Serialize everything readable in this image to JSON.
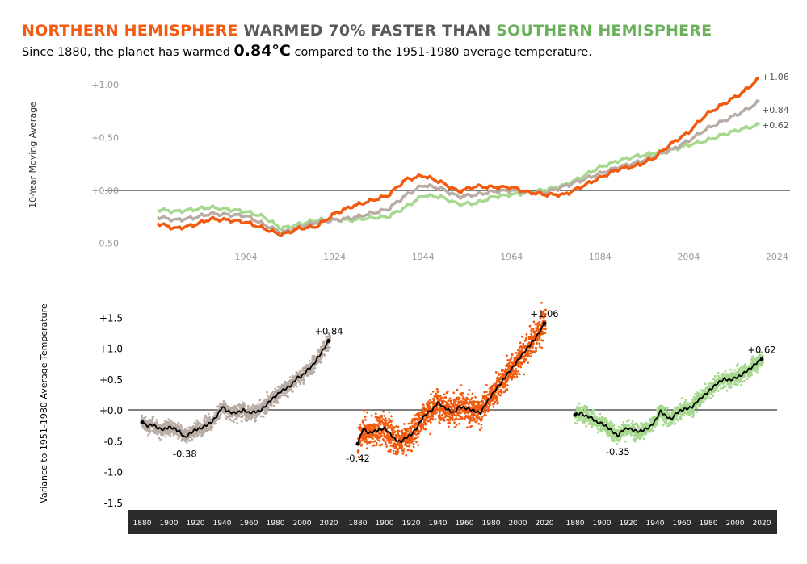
{
  "header": {
    "title_part1": "NORTHERN HEMISPHERE",
    "title_part2": " WARMED 70% FASTER THAN ",
    "title_part3": "SOUTHERN HEMISPHERE",
    "subtitle_pre": "Since 1880, the planet has warmed ",
    "subtitle_value": "0.84°C",
    "subtitle_post": " compared to the 1951-1980 average temperature."
  },
  "colors": {
    "north": "#f25a0f",
    "global": "#b8aca5",
    "south": "#a6d98f",
    "north_title": "#f25a0f",
    "middle_title": "#5a5a5a",
    "south_title": "#6bb15c",
    "bottom_axis_bg": "#2b2b2b"
  },
  "chart_data": [
    {
      "type": "line",
      "ylabel": "10-Year Moving Average",
      "xlabel": "",
      "xlim": [
        1884,
        2025
      ],
      "ylim": [
        -0.55,
        1.1
      ],
      "xticks": [
        "1904",
        "1924",
        "1944",
        "1964",
        "1984",
        "2004",
        "2024"
      ],
      "yticks": [
        "+1.00",
        "+0.50",
        "+0.00",
        "-0.50"
      ],
      "grid": false,
      "series": [
        {
          "key": "global",
          "x": [
            1884,
            1888,
            1892,
            1896,
            1900,
            1904,
            1908,
            1912,
            1916,
            1920,
            1924,
            1928,
            1932,
            1936,
            1940,
            1944,
            1948,
            1952,
            1956,
            1960,
            1964,
            1968,
            1972,
            1976,
            1980,
            1984,
            1988,
            1992,
            1996,
            2000,
            2004,
            2008,
            2012,
            2016,
            2020
          ],
          "values": [
            -0.25,
            -0.28,
            -0.26,
            -0.22,
            -0.23,
            -0.24,
            -0.32,
            -0.4,
            -0.35,
            -0.3,
            -0.28,
            -0.26,
            -0.22,
            -0.18,
            -0.05,
            0.05,
            0.02,
            -0.06,
            -0.04,
            -0.01,
            0.0,
            -0.02,
            -0.02,
            0.04,
            0.1,
            0.16,
            0.22,
            0.26,
            0.32,
            0.38,
            0.47,
            0.58,
            0.66,
            0.74,
            0.84
          ],
          "end_label": "+0.84"
        },
        {
          "key": "north",
          "x": [
            1884,
            1888,
            1892,
            1896,
            1900,
            1904,
            1908,
            1912,
            1916,
            1920,
            1924,
            1928,
            1932,
            1936,
            1940,
            1944,
            1948,
            1952,
            1956,
            1960,
            1964,
            1968,
            1972,
            1976,
            1980,
            1984,
            1988,
            1992,
            1996,
            2000,
            2004,
            2008,
            2012,
            2016,
            2020
          ],
          "values": [
            -0.31,
            -0.36,
            -0.33,
            -0.27,
            -0.28,
            -0.3,
            -0.36,
            -0.42,
            -0.36,
            -0.34,
            -0.22,
            -0.15,
            -0.1,
            -0.05,
            0.1,
            0.14,
            0.08,
            -0.01,
            0.04,
            0.03,
            0.03,
            -0.02,
            -0.04,
            -0.04,
            0.04,
            0.12,
            0.2,
            0.23,
            0.3,
            0.44,
            0.55,
            0.72,
            0.82,
            0.92,
            1.06
          ],
          "end_label": "+1.06"
        },
        {
          "key": "south",
          "x": [
            1884,
            1888,
            1892,
            1896,
            1900,
            1904,
            1908,
            1912,
            1916,
            1920,
            1924,
            1928,
            1932,
            1936,
            1940,
            1944,
            1948,
            1952,
            1956,
            1960,
            1964,
            1968,
            1972,
            1976,
            1980,
            1984,
            1988,
            1992,
            1996,
            2000,
            2004,
            2008,
            2012,
            2016,
            2020
          ],
          "values": [
            -0.18,
            -0.2,
            -0.18,
            -0.16,
            -0.18,
            -0.2,
            -0.25,
            -0.36,
            -0.32,
            -0.28,
            -0.28,
            -0.28,
            -0.26,
            -0.25,
            -0.16,
            -0.05,
            -0.06,
            -0.13,
            -0.12,
            -0.06,
            -0.04,
            -0.02,
            0.01,
            0.05,
            0.13,
            0.22,
            0.28,
            0.32,
            0.35,
            0.38,
            0.43,
            0.47,
            0.53,
            0.58,
            0.62
          ],
          "end_label": "+0.62"
        }
      ]
    },
    {
      "type": "scatter",
      "ylabel": "Variance to 1951-1980 Average Temperature",
      "ylim": [
        -1.6,
        1.6
      ],
      "yticks": [
        "+1.5",
        "+1.0",
        "+0.5",
        "+0.0",
        "-0.5",
        "-1.0",
        "-1.5"
      ],
      "xticks": [
        "1880",
        "1900",
        "1920",
        "1940",
        "1960",
        "1980",
        "2000",
        "2020"
      ],
      "xlim": [
        1875,
        2025
      ],
      "panels": [
        {
          "key": "global",
          "trend_x": [
            1880,
            1884,
            1888,
            1892,
            1896,
            1900,
            1904,
            1908,
            1912,
            1916,
            1920,
            1924,
            1928,
            1932,
            1936,
            1940,
            1944,
            1948,
            1952,
            1956,
            1960,
            1964,
            1968,
            1972,
            1976,
            1980,
            1984,
            1988,
            1992,
            1996,
            2000,
            2004,
            2008,
            2012,
            2016,
            2020
          ],
          "trend_y": [
            -0.2,
            -0.26,
            -0.24,
            -0.3,
            -0.32,
            -0.28,
            -0.3,
            -0.35,
            -0.45,
            -0.38,
            -0.32,
            -0.3,
            -0.25,
            -0.2,
            -0.1,
            0.05,
            -0.02,
            -0.05,
            -0.04,
            0.0,
            -0.05,
            -0.03,
            -0.02,
            0.05,
            0.15,
            0.22,
            0.3,
            0.35,
            0.4,
            0.52,
            0.55,
            0.65,
            0.72,
            0.85,
            0.98,
            1.12
          ],
          "min_label": "-0.38",
          "max_label": "+0.84",
          "spread": 0.1
        },
        {
          "key": "north",
          "trend_x": [
            1880,
            1884,
            1888,
            1892,
            1896,
            1900,
            1904,
            1908,
            1912,
            1916,
            1920,
            1924,
            1928,
            1932,
            1936,
            1940,
            1944,
            1948,
            1952,
            1956,
            1960,
            1964,
            1968,
            1972,
            1976,
            1980,
            1984,
            1988,
            1992,
            1996,
            2000,
            2004,
            2008,
            2012,
            2016,
            2020
          ],
          "trend_y": [
            -0.55,
            -0.3,
            -0.38,
            -0.35,
            -0.32,
            -0.3,
            -0.38,
            -0.48,
            -0.52,
            -0.45,
            -0.4,
            -0.3,
            -0.15,
            -0.05,
            0.0,
            0.12,
            0.05,
            0.0,
            -0.05,
            0.05,
            0.03,
            0.01,
            -0.02,
            -0.05,
            0.1,
            0.22,
            0.35,
            0.45,
            0.58,
            0.68,
            0.8,
            0.92,
            1.02,
            1.12,
            1.25,
            1.4
          ],
          "min_label": "-0.42",
          "max_label": "+1.06",
          "spread": 0.2
        },
        {
          "key": "south",
          "trend_x": [
            1880,
            1884,
            1888,
            1892,
            1896,
            1900,
            1904,
            1908,
            1912,
            1916,
            1920,
            1924,
            1928,
            1932,
            1936,
            1940,
            1944,
            1948,
            1952,
            1956,
            1960,
            1964,
            1968,
            1972,
            1976,
            1980,
            1984,
            1988,
            1992,
            1996,
            2000,
            2004,
            2008,
            2012,
            2016,
            2020
          ],
          "trend_y": [
            -0.08,
            -0.05,
            -0.1,
            -0.12,
            -0.2,
            -0.22,
            -0.28,
            -0.35,
            -0.42,
            -0.32,
            -0.3,
            -0.33,
            -0.35,
            -0.32,
            -0.28,
            -0.18,
            -0.02,
            -0.1,
            -0.15,
            -0.05,
            0.0,
            0.02,
            0.05,
            0.15,
            0.22,
            0.3,
            0.38,
            0.45,
            0.5,
            0.48,
            0.52,
            0.55,
            0.62,
            0.68,
            0.76,
            0.82
          ],
          "min_label": "-0.35",
          "max_label": "+0.62",
          "spread": 0.11
        }
      ]
    }
  ]
}
